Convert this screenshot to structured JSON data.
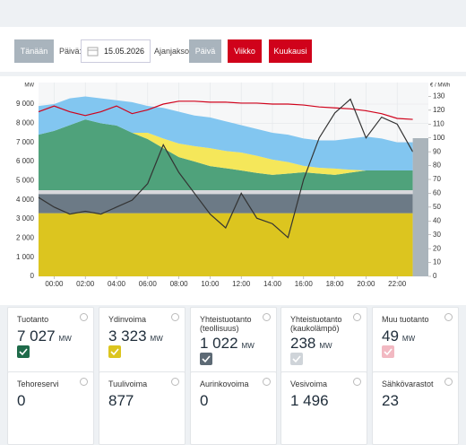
{
  "controls": {
    "today": "Tänään",
    "day_label": "Päivä:",
    "date": "15.05.2026",
    "period_label": "Ajanjakso:",
    "periods": [
      "Päivä",
      "Viikko",
      "Kuukausi"
    ]
  },
  "chart_data": {
    "type": "stacked-area",
    "y_label": "MW",
    "y2_label": "€ / MWh",
    "x": [
      -1,
      0,
      1,
      2,
      3,
      4,
      5,
      6,
      7,
      8,
      9,
      10,
      11,
      12,
      13,
      14,
      15,
      16,
      17,
      18,
      19,
      20,
      21,
      22,
      23
    ],
    "xlim": [
      -1,
      24
    ],
    "xticks": [
      {
        "value": 0,
        "label": "00:00"
      },
      {
        "value": 2,
        "label": "02:00"
      },
      {
        "value": 4,
        "label": "04:00"
      },
      {
        "value": 6,
        "label": "06:00"
      },
      {
        "value": 8,
        "label": "08:00"
      },
      {
        "value": 10,
        "label": "10:00"
      },
      {
        "value": 12,
        "label": "12:00"
      },
      {
        "value": 14,
        "label": "14:00"
      },
      {
        "value": 16,
        "label": "16:00"
      },
      {
        "value": 18,
        "label": "18:00"
      },
      {
        "value": 20,
        "label": "20:00"
      },
      {
        "value": 22,
        "label": "22:00"
      }
    ],
    "ylim": [
      0,
      10125
    ],
    "yticks": [
      0,
      {
        "value": 1000,
        "label": "1 000"
      },
      {
        "value": 2000,
        "label": "2 000"
      },
      {
        "value": 3000,
        "label": "3 000"
      },
      {
        "value": 4000,
        "label": "4 000"
      },
      {
        "value": 5000,
        "label": "5 000"
      },
      {
        "value": 6000,
        "label": "6 000"
      },
      {
        "value": 7000,
        "label": "7 000"
      },
      {
        "value": 8000,
        "label": "8 000"
      },
      {
        "value": 9000,
        "label": "9 000"
      }
    ],
    "y2lim": [
      0,
      140
    ],
    "y2ticks": [
      0,
      10,
      20,
      30,
      40,
      50,
      60,
      70,
      80,
      90,
      100,
      110,
      120,
      130
    ],
    "grid": true,
    "series": [
      {
        "color": "#dcc51f",
        "values": [
          3300,
          3300,
          3300,
          3300,
          3300,
          3300,
          3300,
          3300,
          3300,
          3300,
          3300,
          3300,
          3300,
          3300,
          3300,
          3300,
          3300,
          3300,
          3300,
          3300,
          3300,
          3300,
          3300,
          3300,
          3300
        ]
      },
      {
        "color": "#6c7a86",
        "values": [
          1000,
          1000,
          1000,
          1000,
          1000,
          1000,
          1000,
          1000,
          1000,
          1000,
          1000,
          1000,
          1000,
          1000,
          1000,
          1000,
          1000,
          1000,
          1000,
          1000,
          1000,
          1000,
          1000,
          1000,
          1000
        ]
      },
      {
        "color": "#d8d8dc",
        "values": [
          200,
          200,
          200,
          200,
          200,
          200,
          200,
          200,
          200,
          200,
          200,
          200,
          200,
          200,
          200,
          200,
          200,
          200,
          200,
          200,
          200,
          200,
          200,
          200,
          200
        ]
      },
      {
        "color": "#4fa27b",
        "values": [
          2900,
          3100,
          3400,
          3700,
          3500,
          3380,
          3000,
          2670,
          2200,
          1730,
          1500,
          1260,
          1150,
          1030,
          900,
          800,
          870,
          940,
          870,
          800,
          920,
          1030,
          1030,
          1030,
          1030
        ]
      },
      {
        "color": "#f5e75a",
        "values": [
          0,
          0,
          0,
          0,
          0,
          0,
          0,
          330,
          500,
          710,
          800,
          940,
          900,
          940,
          900,
          800,
          600,
          330,
          300,
          330,
          150,
          0,
          0,
          0,
          0
        ]
      },
      {
        "color": "#82c6f0",
        "values": [
          1500,
          1400,
          1400,
          1200,
          1300,
          1320,
          1600,
          1400,
          1600,
          1660,
          1600,
          1600,
          1550,
          1430,
          1400,
          1400,
          1430,
          1430,
          1430,
          1470,
          1630,
          1770,
          1670,
          1470,
          1470
        ]
      },
      {
        "type": "line",
        "color": "#d0021b",
        "values": [
          8600,
          8900,
          8600,
          8400,
          8600,
          8900,
          8500,
          8700,
          9000,
          9150,
          9150,
          9100,
          9100,
          9050,
          9050,
          9000,
          9000,
          8950,
          8850,
          8800,
          8750,
          8650,
          8500,
          8250,
          8200
        ]
      },
      {
        "type": "line",
        "axis": "y2",
        "color": "#333333",
        "values": [
          57,
          50,
          45,
          47,
          45,
          50,
          55,
          67,
          95,
          75,
          60,
          45,
          35,
          60,
          42,
          38,
          28,
          70,
          100,
          118,
          128,
          100,
          115,
          110,
          90
        ]
      }
    ]
  },
  "cards": [
    {
      "title": "Tuotanto",
      "value": "7 027",
      "unit": "MW",
      "color": "#1f6b4a"
    },
    {
      "title": "Ydinvoima",
      "value": "3 323",
      "unit": "MW",
      "color": "#dcc51f"
    },
    {
      "title": "Yhteistuotanto (teollisuus)",
      "value": "1 022",
      "unit": "MW",
      "color": "#5d6a75"
    },
    {
      "title": "Yhteistuotanto (kaukolämpö)",
      "value": "238",
      "unit": "MW",
      "color": "#cfd4d9"
    },
    {
      "title": "Muu tuotanto",
      "value": "49",
      "unit": "MW",
      "color": "#f2b9c2"
    },
    {
      "title": "Tehoreservi",
      "value": "0"
    },
    {
      "title": "Tuulivoima",
      "value": "877"
    },
    {
      "title": "Aurinkovoima",
      "value": "0"
    },
    {
      "title": "Vesivoima",
      "value": "1 496"
    },
    {
      "title": "Sähkövarastot",
      "value": "23"
    }
  ]
}
